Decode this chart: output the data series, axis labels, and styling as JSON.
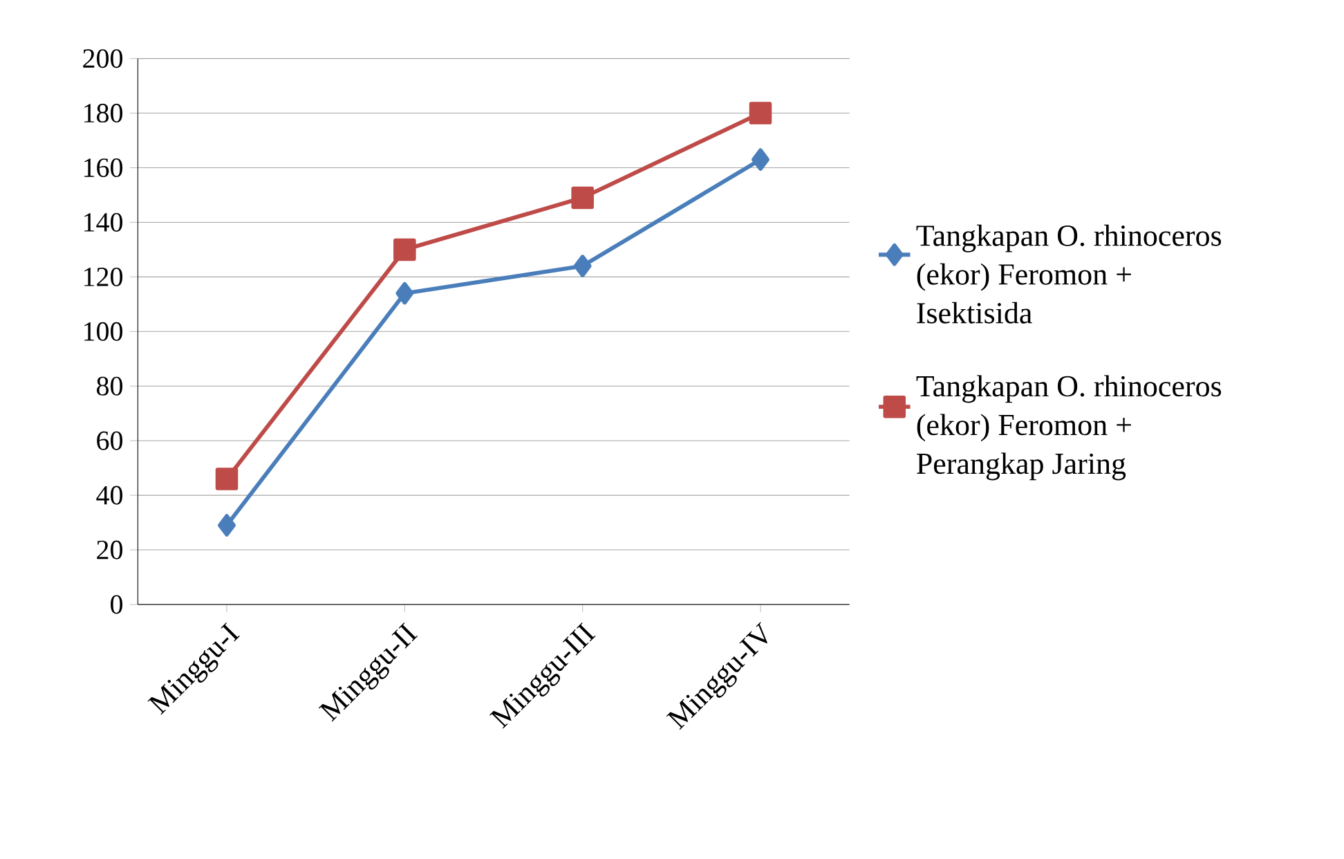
{
  "chart_data": {
    "type": "line",
    "categories": [
      "Minggu-I",
      "Minggu-II",
      "Minggu-III",
      "Minggu-IV"
    ],
    "series": [
      {
        "name": "Tangkapan O. rhinoceros (ekor) Feromon + Isektisida",
        "color": "#4a7ebb",
        "values": [
          29,
          114,
          124,
          163
        ],
        "marker": "diamond"
      },
      {
        "name": "Tangkapan O. rhinoceros (ekor) Feromon + Perangkap Jaring",
        "color": "#be4b48",
        "values": [
          46,
          130,
          149,
          180
        ],
        "marker": "square"
      }
    ],
    "ylim": [
      0,
      200
    ],
    "yticks": [
      0,
      20,
      40,
      60,
      80,
      100,
      120,
      140,
      160,
      180,
      200
    ],
    "grid": "y",
    "legend": "right",
    "line_style": "solid"
  }
}
